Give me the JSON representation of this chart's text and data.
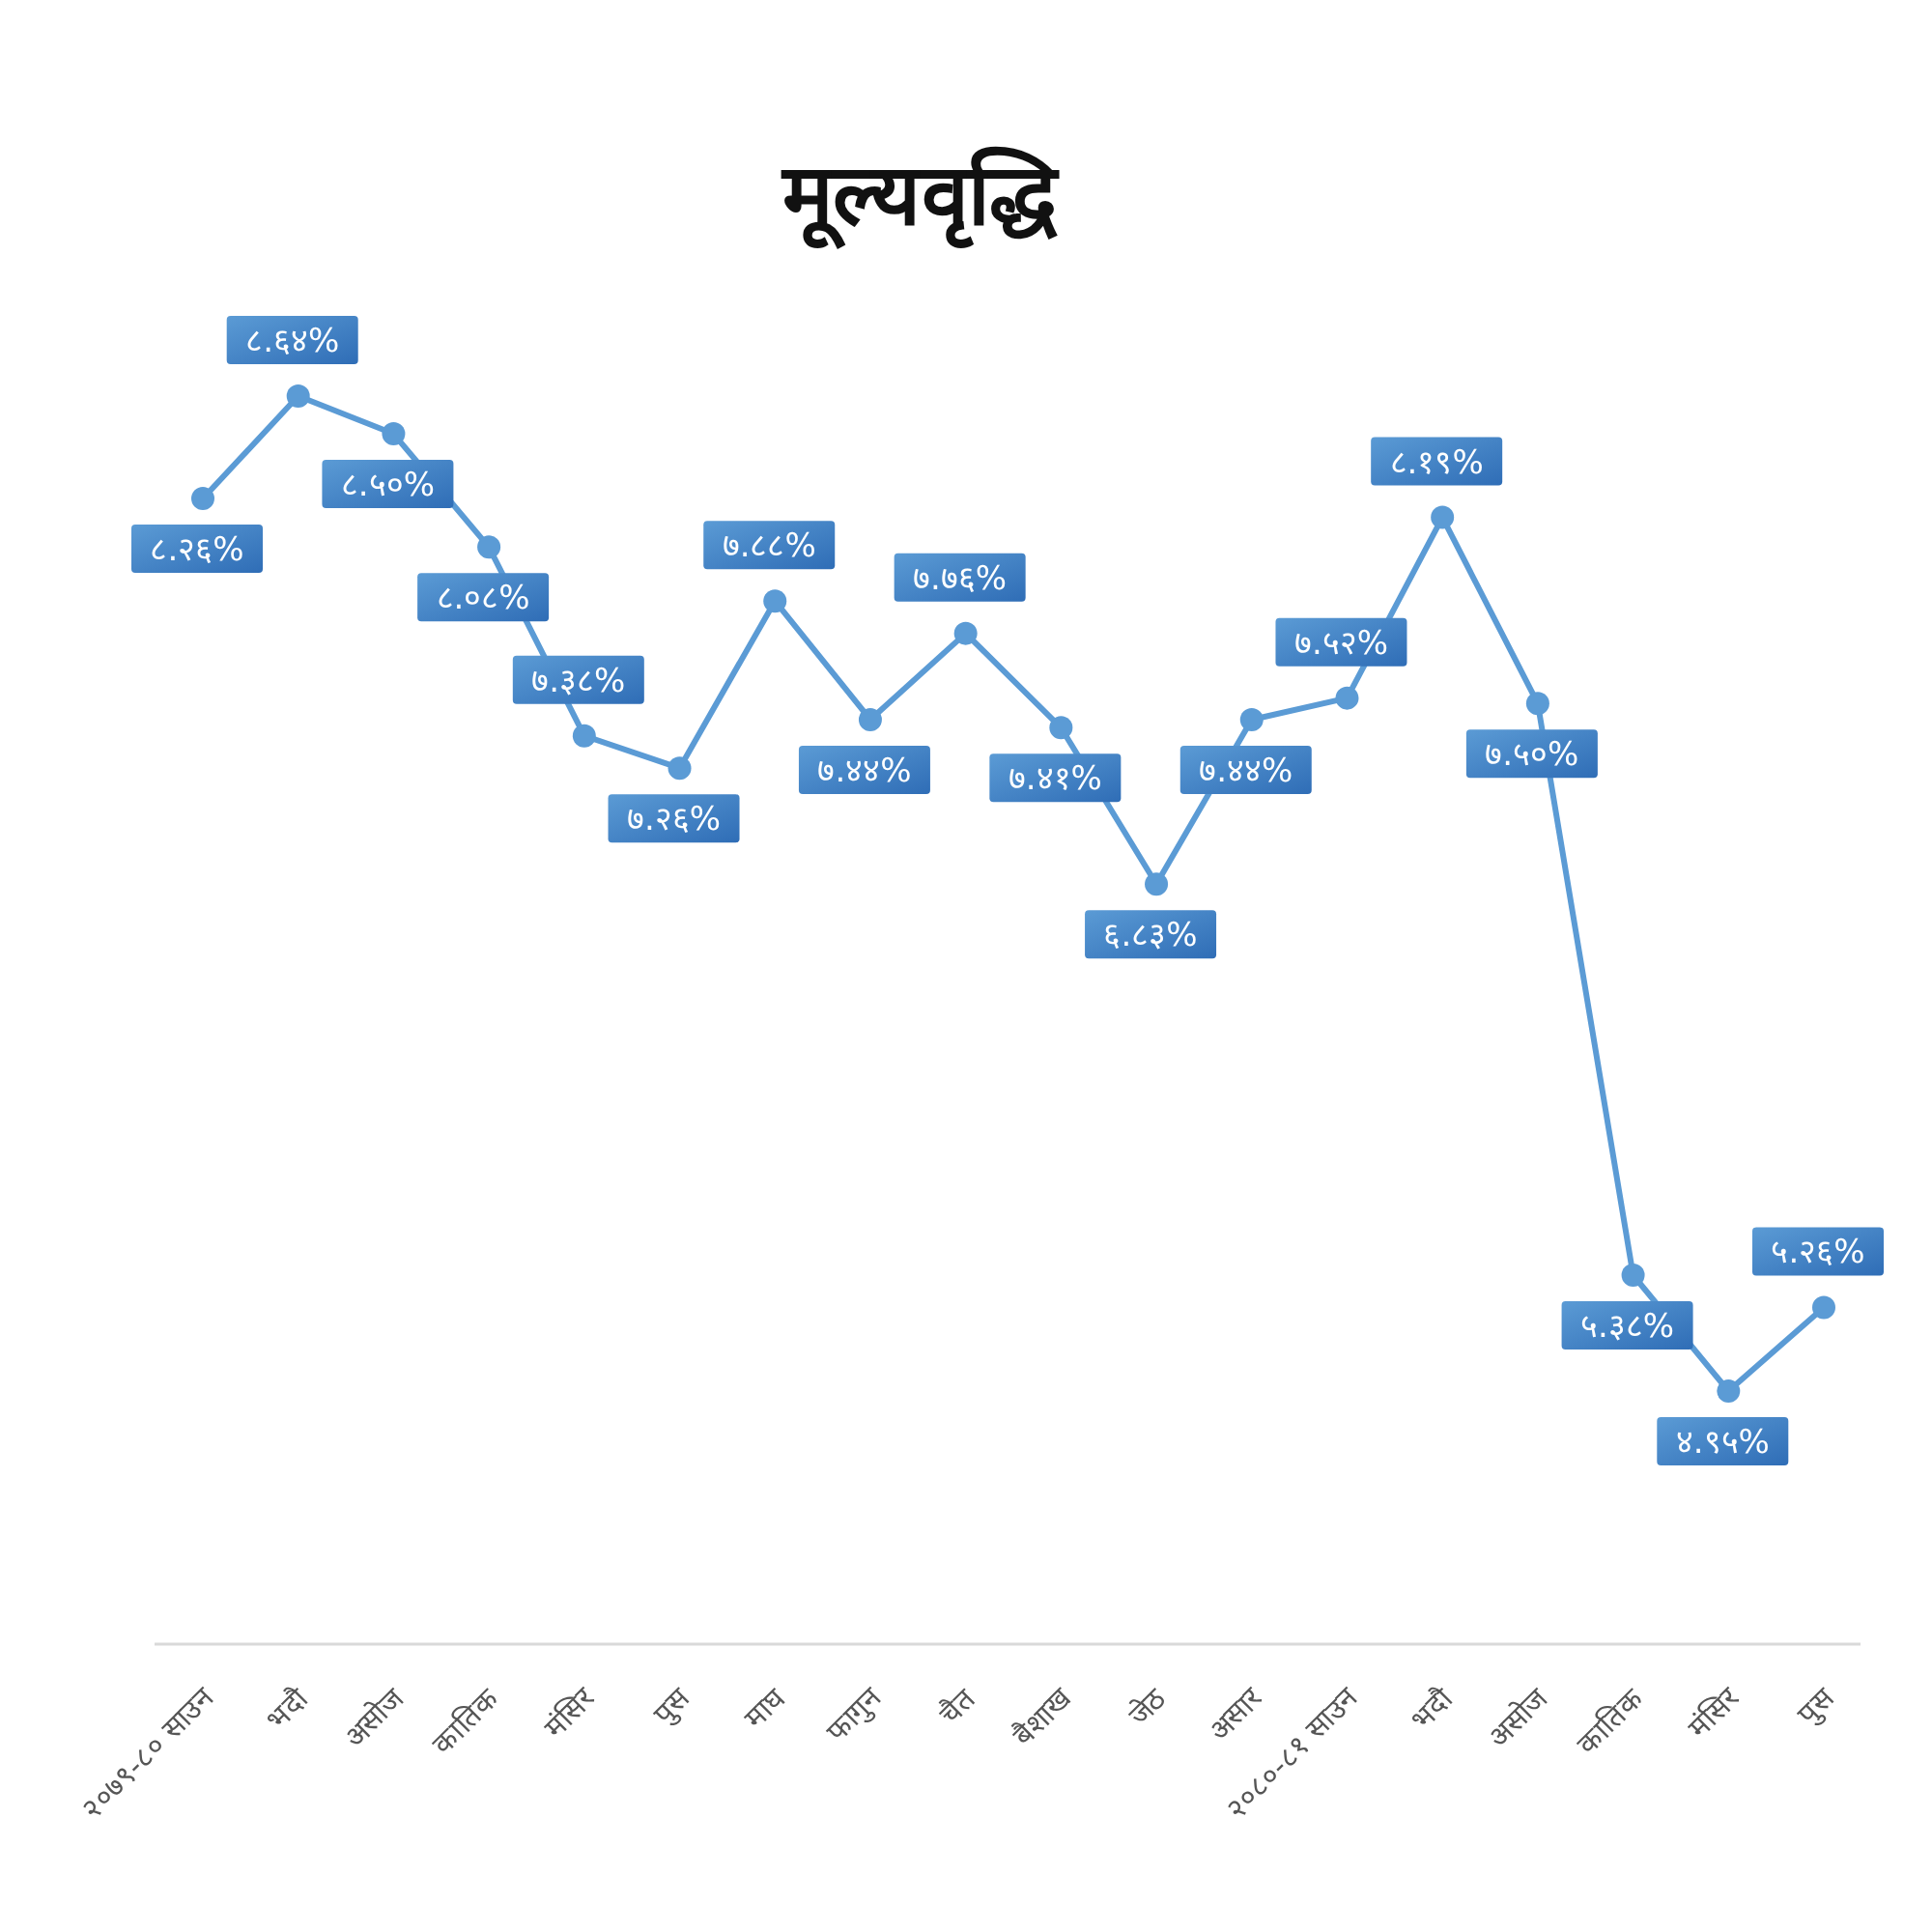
{
  "chart_data": {
    "type": "line",
    "title": "मूल्यवृद्धि",
    "categories": [
      "२०७९-८० साउन",
      "भदौ",
      "असोज",
      "कातिक",
      "मंसिर",
      "पुस",
      "माघ",
      "फागुन",
      "चैत",
      "बैशाख",
      "जेठ",
      "असार",
      "२०८०-८१ साउन",
      "भदौ",
      "असोज",
      "कातिक",
      "मंसिर",
      "पुस"
    ],
    "values": [
      8.26,
      8.64,
      8.5,
      8.08,
      7.38,
      7.26,
      7.88,
      7.44,
      7.76,
      7.41,
      6.83,
      7.44,
      7.52,
      8.19,
      7.5,
      5.38,
      4.95,
      5.26
    ],
    "value_labels": [
      "८.२६%",
      "८.६४%",
      "८.५०%",
      "८.०८%",
      "७.३८%",
      "७.२६%",
      "७.८८%",
      "७.४४%",
      "७.७६%",
      "७.४१%",
      "६.८३%",
      "७.४४%",
      "७.५२%",
      "८.१९%",
      "७.५०%",
      "५.३८%",
      "४.९५%",
      "५.२६%"
    ],
    "color": "#5b9bd5",
    "marker": "circle"
  }
}
